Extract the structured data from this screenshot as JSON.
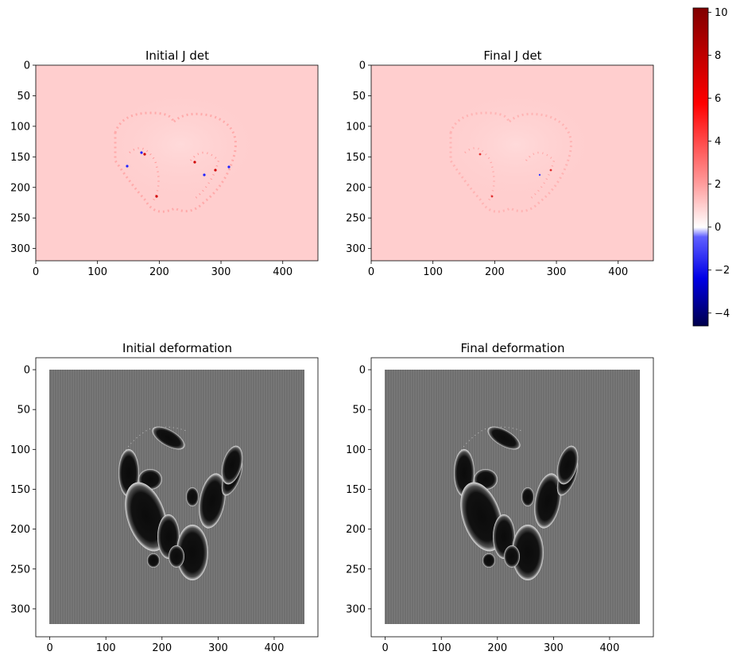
{
  "chart_data": [
    {
      "type": "heatmap",
      "title": "Initial J det",
      "colormap": "seismic",
      "background_color": "#ffcece",
      "image_extent": {
        "x": [
          0,
          457
        ],
        "y": [
          320,
          0
        ]
      },
      "xlim": [
        0,
        457
      ],
      "ylim": [
        320,
        0
      ],
      "x_ticks": [
        0,
        100,
        200,
        300,
        400
      ],
      "y_ticks": [
        0,
        50,
        100,
        150,
        200,
        250,
        300
      ],
      "features": "ring of small high/low determinant speckles tracing a skull outline spanning roughly x 125–335, y 75–255"
    },
    {
      "type": "heatmap",
      "title": "Final J det",
      "colormap": "seismic",
      "background_color": "#ffcece",
      "image_extent": {
        "x": [
          0,
          457
        ],
        "y": [
          320,
          0
        ]
      },
      "xlim": [
        0,
        457
      ],
      "ylim": [
        320,
        0
      ],
      "x_ticks": [
        0,
        100,
        200,
        300,
        400
      ],
      "y_ticks": [
        0,
        50,
        100,
        150,
        200,
        250,
        300
      ],
      "features": "same skull outline with fewer, softer speckles than the initial map"
    },
    {
      "type": "heatmap",
      "title": "Initial deformation",
      "colormap": "gray",
      "background_color": "#707070",
      "image_extent": {
        "x": [
          0,
          455
        ],
        "y": [
          320,
          0
        ]
      },
      "xlim": [
        -25,
        478
      ],
      "ylim": [
        335,
        -15
      ],
      "x_ticks": [
        0,
        100,
        200,
        300,
        400
      ],
      "y_ticks": [
        0,
        50,
        100,
        150,
        200,
        250,
        300
      ],
      "features": "dark grey grid field with black blobby regions outlined by bright rims, roughly x 125–335, y 75–260"
    },
    {
      "type": "heatmap",
      "title": "Final deformation",
      "colormap": "gray",
      "background_color": "#707070",
      "image_extent": {
        "x": [
          0,
          455
        ],
        "y": [
          320,
          0
        ]
      },
      "xlim": [
        -25,
        478
      ],
      "ylim": [
        335,
        -15
      ],
      "x_ticks": [
        0,
        100,
        200,
        300,
        400
      ],
      "y_ticks": [
        0,
        50,
        100,
        150,
        200,
        250,
        300
      ],
      "features": "nearly identical black blobby regions to the initial deformation"
    }
  ],
  "colorbar": {
    "colormap": "seismic",
    "range": [
      -4.6,
      10.2
    ],
    "center": 0,
    "ticks": [
      -4,
      -2,
      0,
      2,
      4,
      6,
      8,
      10
    ],
    "tick_labels": [
      "−4",
      "−2",
      "0",
      "2",
      "4",
      "6",
      "8",
      "10"
    ]
  }
}
